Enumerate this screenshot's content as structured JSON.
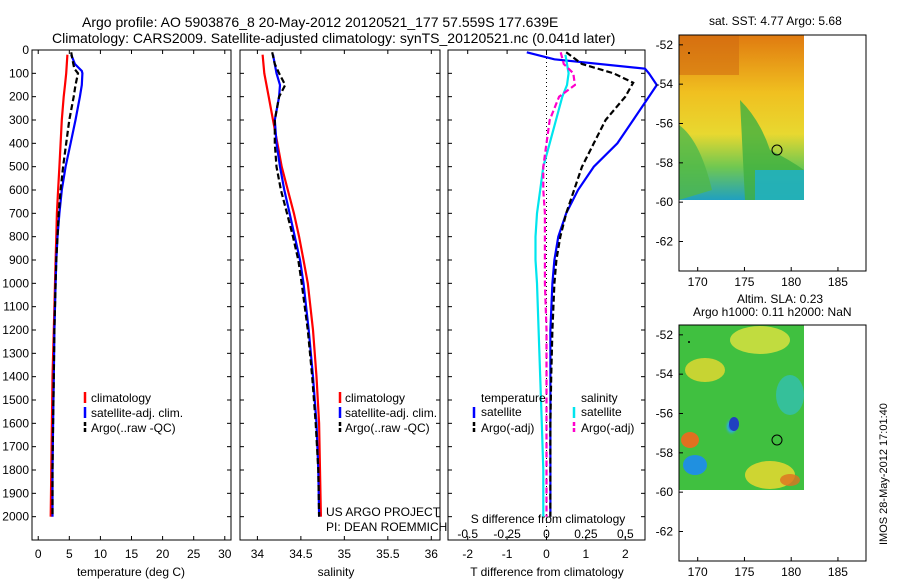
{
  "header": {
    "line1": "Argo profile: AO 5903876_8 20-May-2012 20120521_177 57.559S 177.639E",
    "line2": "Climatology: CARS2009. Satellite-adjusted climatology: synTS_20120521.nc (0.041d later)"
  },
  "credit": {
    "project": "US ARGO PROJECT",
    "pi": "PI: DEAN ROEMMICH",
    "imos": "IMOS 28-May-2012 17:01:40"
  },
  "colors": {
    "climatology": "#ff0000",
    "satellite": "#0000ff",
    "argo": "#000000",
    "salinity_satellite": "#00e5ee",
    "salinity_argo": "#ff00cc"
  },
  "depth_ticks": [
    "0",
    "100",
    "200",
    "300",
    "400",
    "500",
    "600",
    "700",
    "800",
    "900",
    "1000",
    "1100",
    "1200",
    "1300",
    "1400",
    "1500",
    "1600",
    "1700",
    "1800",
    "1900",
    "2000"
  ],
  "legend_profile": {
    "climatology": "climatology",
    "satellite": "satellite-adj. clim.",
    "argo": "Argo(..raw -QC)"
  },
  "legend_diff": {
    "temperature_head": "temperature",
    "salinity_head": "salinity",
    "t_satellite": "satellite",
    "t_argo": "Argo(-adj)",
    "s_satellite": "satellite",
    "s_argo": "Argo(-adj)"
  },
  "maps": {
    "top_title": "sat. SST: 4.77 Argo: 5.68",
    "bottom_title1": "Altim. SLA: 0.23",
    "bottom_title2": "Argo h1000: 0.11 h2000: NaN",
    "lat_ticks": [
      "-52",
      "-54",
      "-56",
      "-58",
      "-60",
      "-62"
    ],
    "lon_ticks": [
      "170",
      "175",
      "180",
      "185"
    ]
  },
  "chart_data": [
    {
      "type": "line",
      "xlabel": "temperature (deg C)",
      "ylabel": "",
      "xlim": [
        -1,
        31
      ],
      "ylim": [
        2100,
        0
      ],
      "x_ticks": [
        "0",
        "5",
        "10",
        "15",
        "20",
        "25",
        "30"
      ],
      "x_tick_values": [
        0,
        5,
        10,
        15,
        20,
        25,
        30
      ],
      "series": [
        {
          "name": "climatology",
          "color": "#ff0000",
          "depth": [
            20,
            60,
            100,
            150,
            200,
            300,
            400,
            500,
            600,
            700,
            800,
            900,
            1000,
            1200,
            1400,
            1600,
            1800,
            2000
          ],
          "values": [
            4.7,
            4.6,
            4.5,
            4.3,
            4.1,
            3.8,
            3.6,
            3.4,
            3.2,
            3.0,
            2.9,
            2.8,
            2.7,
            2.5,
            2.3,
            2.2,
            2.1,
            2.0
          ]
        },
        {
          "name": "satellite-adj. clim.",
          "color": "#0000ff",
          "depth": [
            20,
            60,
            90,
            100,
            150,
            200,
            300,
            400,
            500,
            600,
            700,
            800,
            900,
            1000,
            1200,
            1400,
            1600,
            1800,
            2000
          ],
          "values": [
            5.3,
            5.9,
            7.0,
            7.1,
            7.0,
            6.7,
            6.0,
            5.2,
            4.4,
            3.8,
            3.4,
            3.1,
            2.9,
            2.8,
            2.6,
            2.5,
            2.4,
            2.3,
            2.3
          ]
        },
        {
          "name": "Argo(..raw -QC)",
          "color": "#000000",
          "dashed": true,
          "depth": [
            10,
            40,
            80,
            100,
            150,
            200,
            300,
            400,
            500,
            600,
            700,
            800,
            900,
            1000,
            1200,
            1400,
            1600,
            1800,
            2000
          ],
          "values": [
            5.3,
            5.5,
            5.8,
            6.4,
            6.0,
            5.7,
            5.0,
            4.5,
            4.0,
            3.6,
            3.3,
            3.1,
            2.9,
            2.8,
            2.6,
            2.5,
            2.4,
            2.3,
            2.3
          ]
        }
      ]
    },
    {
      "type": "line",
      "xlabel": "salinity",
      "ylabel": "",
      "xlim": [
        33.8,
        36.1
      ],
      "ylim": [
        2100,
        0
      ],
      "x_ticks": [
        "34",
        "34.5",
        "35",
        "35.5",
        "36"
      ],
      "x_tick_values": [
        34,
        34.5,
        35,
        35.5,
        36
      ],
      "series": [
        {
          "name": "climatology",
          "color": "#ff0000",
          "depth": [
            20,
            100,
            200,
            300,
            400,
            500,
            600,
            700,
            800,
            900,
            1000,
            1200,
            1400,
            1600,
            1800,
            2000
          ],
          "values": [
            34.06,
            34.08,
            34.13,
            34.18,
            34.23,
            34.28,
            34.35,
            34.42,
            34.48,
            34.53,
            34.58,
            34.64,
            34.68,
            34.71,
            34.72,
            34.73
          ]
        },
        {
          "name": "satellite-adj. clim.",
          "color": "#0000ff",
          "depth": [
            20,
            100,
            150,
            200,
            300,
            400,
            500,
            600,
            700,
            800,
            900,
            1000,
            1200,
            1400,
            1600,
            1800,
            2000
          ],
          "values": [
            34.18,
            34.22,
            34.26,
            34.25,
            34.2,
            34.22,
            34.26,
            34.31,
            34.37,
            34.43,
            34.49,
            34.53,
            34.59,
            34.64,
            34.68,
            34.7,
            34.71
          ]
        },
        {
          "name": "Argo(..raw -QC)",
          "color": "#000000",
          "dashed": true,
          "depth": [
            10,
            60,
            100,
            150,
            200,
            300,
            400,
            500,
            600,
            700,
            800,
            900,
            1000,
            1200,
            1400,
            1600,
            1800,
            2000
          ],
          "values": [
            34.17,
            34.2,
            34.25,
            34.32,
            34.25,
            34.2,
            34.2,
            34.22,
            34.27,
            34.34,
            34.41,
            34.47,
            34.51,
            34.58,
            34.63,
            34.67,
            34.7,
            34.71
          ]
        }
      ]
    },
    {
      "type": "line",
      "xlabel": "T difference from climatology",
      "xlabel_top": "S difference from climatology",
      "xlim": [
        -2.5,
        2.5
      ],
      "ylim": [
        2100,
        0
      ],
      "x_ticks": [
        "-2",
        "-1",
        "0",
        "1",
        "2"
      ],
      "x_tick_values": [
        -2,
        -1,
        0,
        1,
        2
      ],
      "x_ticks_salinity": [
        "-0.5",
        "-0.25",
        "0",
        "0.25",
        "0.5"
      ],
      "x_tick_values_salinity": [
        -0.5,
        -0.25,
        0,
        0.25,
        0.5
      ],
      "series": [
        {
          "name": "temperature satellite",
          "color": "#0000ff",
          "depth": [
            10,
            40,
            80,
            100,
            150,
            200,
            300,
            400,
            500,
            600,
            700,
            800,
            900,
            1000,
            1200,
            1400,
            1600,
            1800,
            2000
          ],
          "values": [
            -0.5,
            0.2,
            2.5,
            2.6,
            2.8,
            2.6,
            2.2,
            1.8,
            1.2,
            0.8,
            0.5,
            0.3,
            0.2,
            0.15,
            0.1,
            0.1,
            0.1,
            0.1,
            0.1
          ]
        },
        {
          "name": "temperature Argo(-adj)",
          "color": "#000000",
          "dashed": true,
          "depth": [
            10,
            60,
            100,
            140,
            200,
            300,
            400,
            500,
            600,
            700,
            800,
            900,
            1000,
            1200,
            1400,
            1600,
            1800,
            2000
          ],
          "values": [
            0.5,
            0.9,
            1.7,
            2.2,
            2.0,
            1.5,
            1.2,
            0.9,
            0.7,
            0.5,
            0.35,
            0.25,
            0.2,
            0.15,
            0.12,
            0.1,
            0.1,
            0.1
          ]
        },
        {
          "name": "salinity satellite",
          "color": "#00e5ee",
          "depth": [
            20,
            100,
            150,
            200,
            300,
            400,
            500,
            600,
            700,
            800,
            900,
            1000,
            1200,
            1400,
            1600,
            1800,
            2000
          ],
          "values": [
            0.12,
            0.14,
            0.13,
            0.1,
            0.06,
            0.02,
            -0.02,
            -0.04,
            -0.06,
            -0.07,
            -0.07,
            -0.06,
            -0.05,
            -0.04,
            -0.03,
            -0.02,
            -0.02
          ]
        },
        {
          "name": "salinity Argo(-adj)",
          "color": "#ff00cc",
          "dashed": true,
          "depth": [
            10,
            60,
            100,
            150,
            200,
            300,
            400,
            500,
            600,
            700,
            800,
            900,
            1000,
            1200,
            1400,
            1600,
            1800,
            2000
          ],
          "values": [
            0.09,
            0.11,
            0.17,
            0.18,
            0.08,
            0.02,
            0.0,
            -0.02,
            -0.02,
            -0.01,
            -0.01,
            -0.01,
            -0.01,
            0.0,
            0.0,
            0.0,
            0.0,
            0.0
          ]
        }
      ]
    }
  ]
}
